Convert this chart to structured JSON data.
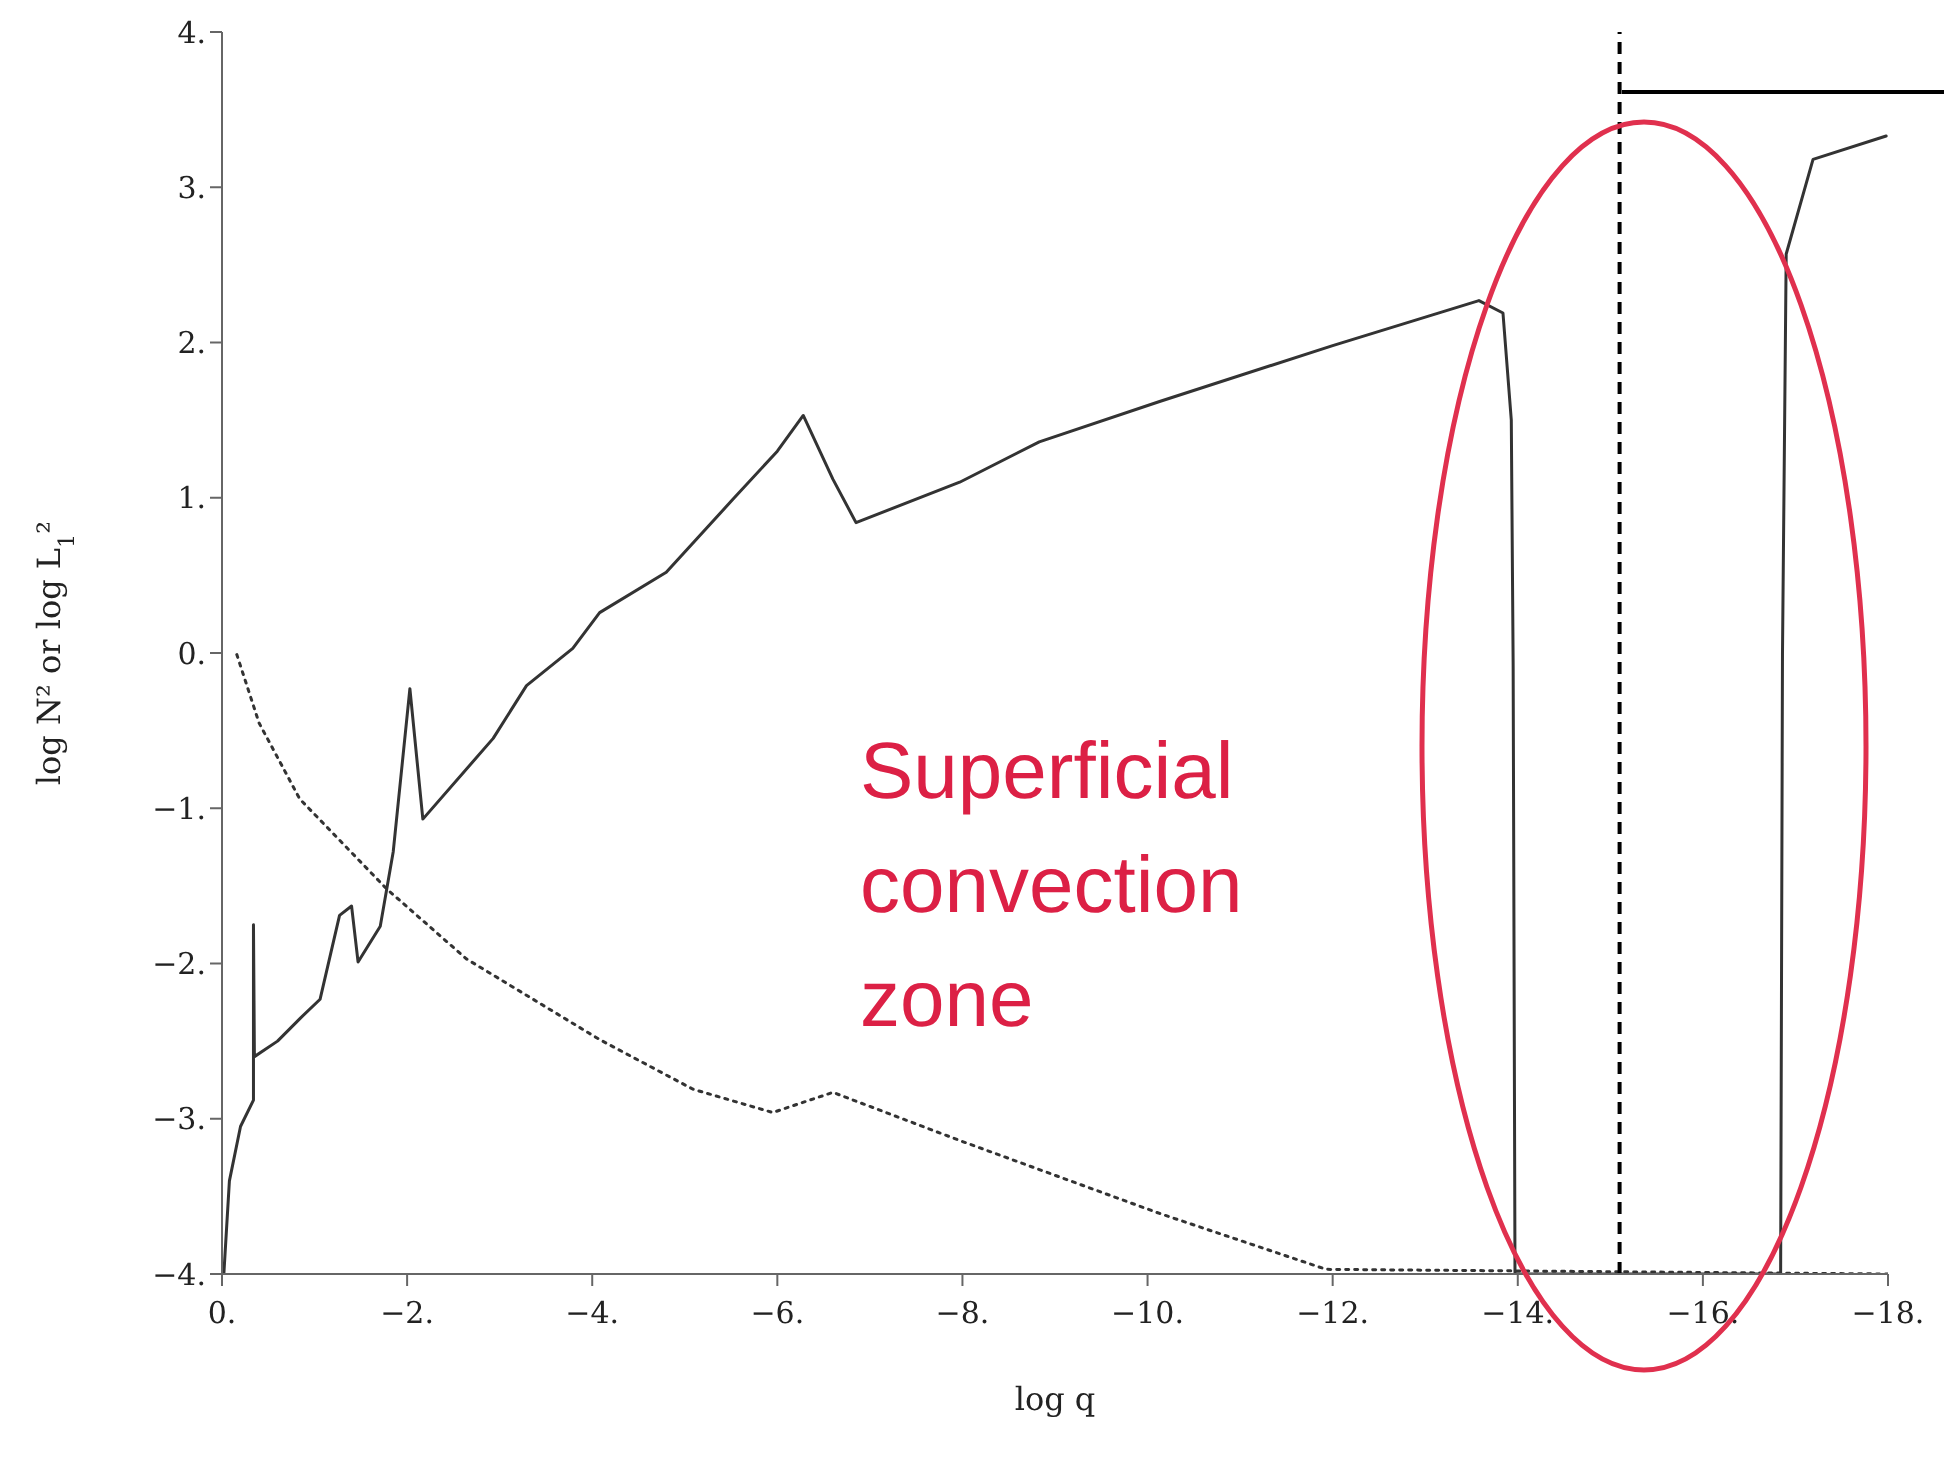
{
  "chart_data": {
    "type": "line",
    "xlabel": "log q",
    "ylabel": "log N² or log L$_{1}$²",
    "annotations": [
      "Superficial convection zone"
    ],
    "xlim": [
      0,
      -18
    ],
    "xticks": [
      {
        "value": 0,
        "label": "0."
      },
      {
        "value": -2,
        "label": "−2."
      },
      {
        "value": -4,
        "label": "−4."
      },
      {
        "value": -6,
        "label": "−6."
      },
      {
        "value": -8,
        "label": "−8."
      },
      {
        "value": -10,
        "label": "−10."
      },
      {
        "value": -12,
        "label": "−12."
      },
      {
        "value": -14,
        "label": "−14."
      },
      {
        "value": -16,
        "label": "−16."
      },
      {
        "value": -18,
        "label": "−18."
      }
    ],
    "ylim": [
      -4,
      4
    ],
    "yticks": [
      {
        "value": -4,
        "label": "−4."
      },
      {
        "value": -3,
        "label": "−3."
      },
      {
        "value": -2,
        "label": "−2."
      },
      {
        "value": -1,
        "label": "−1."
      },
      {
        "value": 0,
        "label": "0."
      },
      {
        "value": 1,
        "label": "1."
      },
      {
        "value": 2,
        "label": "2."
      },
      {
        "value": 3,
        "label": "3."
      },
      {
        "value": 4,
        "label": "4."
      }
    ],
    "grid": false,
    "legend": false,
    "marker": "none",
    "ref_lines": [
      {
        "axis": "x",
        "value": -15.1,
        "color": "#000000",
        "line_style": "dashed"
      }
    ],
    "series": [
      {
        "color": "#333333",
        "line_style": "solid",
        "x": [
          -0.02,
          -0.08,
          -0.2,
          -0.34,
          -0.34,
          -0.35,
          -0.6,
          -0.85,
          -1.06,
          -1.27,
          -1.4,
          -1.47,
          -1.71,
          -1.85,
          -2.03,
          -2.17,
          -2.93,
          -3.29,
          -3.79,
          -4.08,
          -4.8,
          -5.52,
          -6.0,
          -6.28,
          -6.6,
          -6.85,
          -7.97,
          -8.83,
          -10.13,
          -12.0,
          -13.58,
          -13.84,
          -13.93,
          -13.95,
          -13.97,
          -16.84,
          -16.86,
          -16.9,
          -17.19,
          -17.98
        ],
        "values": [
          -4,
          -3.4,
          -3.05,
          -2.88,
          -1.75,
          -2.6,
          -2.5,
          -2.35,
          -2.23,
          -1.69,
          -1.63,
          -1.99,
          -1.76,
          -1.28,
          -0.23,
          -1.07,
          -0.55,
          -0.21,
          0.03,
          0.26,
          0.52,
          0.99,
          1.3,
          1.53,
          1.12,
          0.84,
          1.1,
          1.36,
          1.62,
          1.98,
          2.27,
          2.19,
          1.5,
          -0.08,
          -4,
          -4,
          0,
          2.57,
          3.18,
          3.33
        ]
      },
      {
        "color": "#333333",
        "line_style": "dotted",
        "x": [
          -0.16,
          -0.4,
          -0.84,
          -1.78,
          -2.64,
          -4.08,
          -5.09,
          -5.95,
          -6.6,
          -7.97,
          -10.13,
          -11.93,
          -18
        ],
        "values": [
          -0.01,
          -0.45,
          -0.94,
          -1.52,
          -1.97,
          -2.49,
          -2.81,
          -2.96,
          -2.83,
          -3.14,
          -3.61,
          -3.97,
          -4
        ]
      }
    ]
  }
}
